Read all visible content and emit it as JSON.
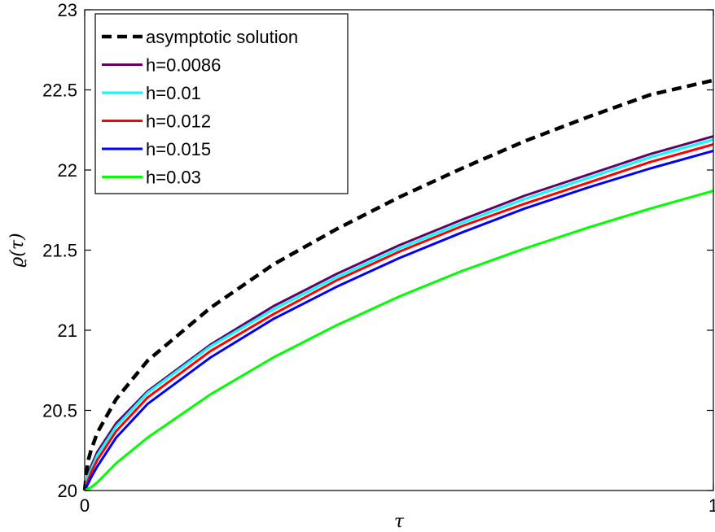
{
  "chart_data": {
    "type": "line",
    "title": "",
    "xlabel": "τ",
    "ylabel": "ϱ(τ)",
    "xlim": [
      0,
      1
    ],
    "ylim": [
      20,
      23
    ],
    "xticks": [
      0,
      1
    ],
    "xtick_labels": [
      "0",
      "1"
    ],
    "yticks": [
      20,
      20.5,
      21,
      21.5,
      22,
      22.5,
      23
    ],
    "ytick_labels": [
      "20",
      "20.5",
      "21",
      "21.5",
      "22",
      "22.5",
      "23"
    ],
    "grid": false,
    "legend_position": "top-left",
    "x": [
      0,
      0.005,
      0.01,
      0.02,
      0.05,
      0.1,
      0.2,
      0.3,
      0.4,
      0.5,
      0.6,
      0.7,
      0.8,
      0.9,
      1.0
    ],
    "series": [
      {
        "name": "asymptotic solution",
        "color": "#000000",
        "dash": "dashed",
        "values": [
          20.0,
          20.18,
          20.25,
          20.36,
          20.57,
          20.81,
          21.14,
          21.41,
          21.63,
          21.83,
          22.01,
          22.18,
          22.33,
          22.47,
          22.56
        ]
      },
      {
        "name": "h=0.0086",
        "color": "#660066",
        "dash": "solid",
        "values": [
          20.0,
          20.09,
          20.15,
          20.24,
          20.42,
          20.62,
          20.91,
          21.15,
          21.35,
          21.53,
          21.69,
          21.84,
          21.97,
          22.1,
          22.21
        ]
      },
      {
        "name": "h=0.01",
        "color": "#00ffff",
        "dash": "solid",
        "values": [
          20.0,
          20.08,
          20.13,
          20.22,
          20.4,
          20.61,
          20.9,
          21.13,
          21.33,
          21.51,
          21.67,
          21.82,
          21.95,
          22.08,
          22.19
        ]
      },
      {
        "name": "h=0.012",
        "color": "#ff0000",
        "dash": "solid",
        "values": [
          20.0,
          20.06,
          20.11,
          20.19,
          20.37,
          20.58,
          20.87,
          21.1,
          21.31,
          21.49,
          21.65,
          21.79,
          21.92,
          22.05,
          22.16
        ]
      },
      {
        "name": "h=0.015",
        "color": "#0000ff",
        "dash": "solid",
        "values": [
          20.0,
          20.04,
          20.08,
          20.15,
          20.33,
          20.54,
          20.83,
          21.07,
          21.27,
          21.45,
          21.61,
          21.76,
          21.89,
          22.01,
          22.12
        ]
      },
      {
        "name": "h=0.03",
        "color": "#00ff00",
        "dash": "solid",
        "values": [
          20.0,
          20.01,
          20.02,
          20.05,
          20.17,
          20.33,
          20.6,
          20.83,
          21.03,
          21.21,
          21.37,
          21.51,
          21.64,
          21.76,
          21.87
        ]
      }
    ]
  }
}
